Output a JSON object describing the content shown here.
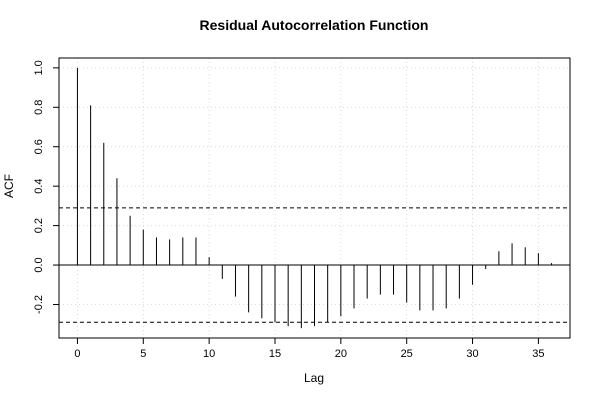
{
  "chart_data": {
    "type": "bar",
    "title": "Residual Autocorrelation Function",
    "xlabel": "Lag",
    "ylabel": "ACF",
    "xlim": [
      -1.4,
      37.4
    ],
    "ylim": [
      -0.37,
      1.05
    ],
    "x_ticks": [
      0,
      5,
      10,
      15,
      20,
      25,
      30,
      35
    ],
    "y_ticks": [
      -0.2,
      0.0,
      0.2,
      0.4,
      0.6,
      0.8,
      1.0
    ],
    "y_tick_labels": [
      "-0.2",
      "0.0",
      "0.2",
      "0.4",
      "0.6",
      "0.8",
      "1.0"
    ],
    "confidence_band": [
      0.29,
      -0.29
    ],
    "grid": true,
    "lags": [
      0,
      1,
      2,
      3,
      4,
      5,
      6,
      7,
      8,
      9,
      10,
      11,
      12,
      13,
      14,
      15,
      16,
      17,
      18,
      19,
      20,
      21,
      22,
      23,
      24,
      25,
      26,
      27,
      28,
      29,
      30,
      31,
      32,
      33,
      34,
      35,
      36
    ],
    "values": [
      1.0,
      0.81,
      0.62,
      0.44,
      0.25,
      0.18,
      0.14,
      0.13,
      0.14,
      0.14,
      0.04,
      -0.07,
      -0.16,
      -0.24,
      -0.27,
      -0.29,
      -0.31,
      -0.32,
      -0.31,
      -0.29,
      -0.26,
      -0.22,
      -0.17,
      -0.15,
      -0.15,
      -0.19,
      -0.23,
      -0.23,
      -0.22,
      -0.17,
      -0.1,
      -0.02,
      0.07,
      0.11,
      0.09,
      0.06,
      0.01
    ]
  }
}
